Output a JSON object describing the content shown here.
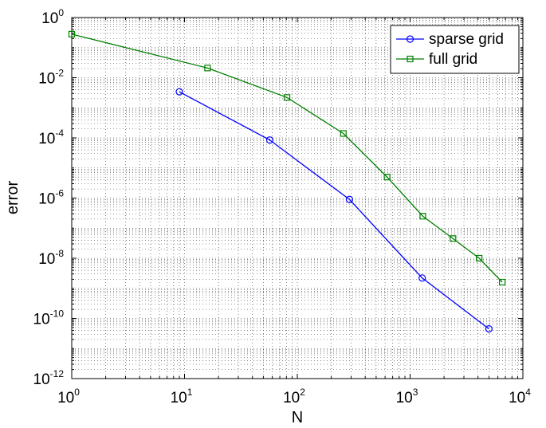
{
  "chart_data": {
    "type": "line",
    "title": "",
    "xlabel": "N",
    "ylabel": "error",
    "xscale": "log",
    "yscale": "log",
    "xlim": [
      1,
      10000
    ],
    "ylim": [
      1e-12,
      1
    ],
    "grid": true,
    "legend_position": "top-right",
    "x_ticks": [
      {
        "base": "10",
        "exp": "0",
        "value": 1
      },
      {
        "base": "10",
        "exp": "1",
        "value": 10
      },
      {
        "base": "10",
        "exp": "2",
        "value": 100
      },
      {
        "base": "10",
        "exp": "3",
        "value": 1000
      },
      {
        "base": "10",
        "exp": "4",
        "value": 10000
      }
    ],
    "y_ticks": [
      {
        "base": "10",
        "exp": "0",
        "value": 1
      },
      {
        "base": "10",
        "exp": "-2",
        "value": 0.01
      },
      {
        "base": "10",
        "exp": "-4",
        "value": 0.0001
      },
      {
        "base": "10",
        "exp": "-6",
        "value": 1e-06
      },
      {
        "base": "10",
        "exp": "-8",
        "value": 1e-08
      },
      {
        "base": "10",
        "exp": "-10",
        "value": 1e-10
      },
      {
        "base": "10",
        "exp": "-12",
        "value": 1e-12
      }
    ],
    "series": [
      {
        "name": "sparse grid",
        "color": "#0000ff",
        "marker": "circle",
        "x": [
          9,
          57,
          290,
          1280,
          5000
        ],
        "y": [
          0.0034,
          8.5e-05,
          9e-07,
          2.2e-09,
          4.5e-11
        ]
      },
      {
        "name": "full grid",
        "color": "#008000",
        "marker": "square",
        "x": [
          1,
          16,
          81,
          256,
          625,
          1296,
          2401,
          4096,
          6561
        ],
        "y": [
          0.28,
          0.021,
          0.0022,
          0.00014,
          5e-06,
          2.5e-07,
          4.5e-08,
          1e-08,
          1.6e-09
        ]
      }
    ]
  }
}
